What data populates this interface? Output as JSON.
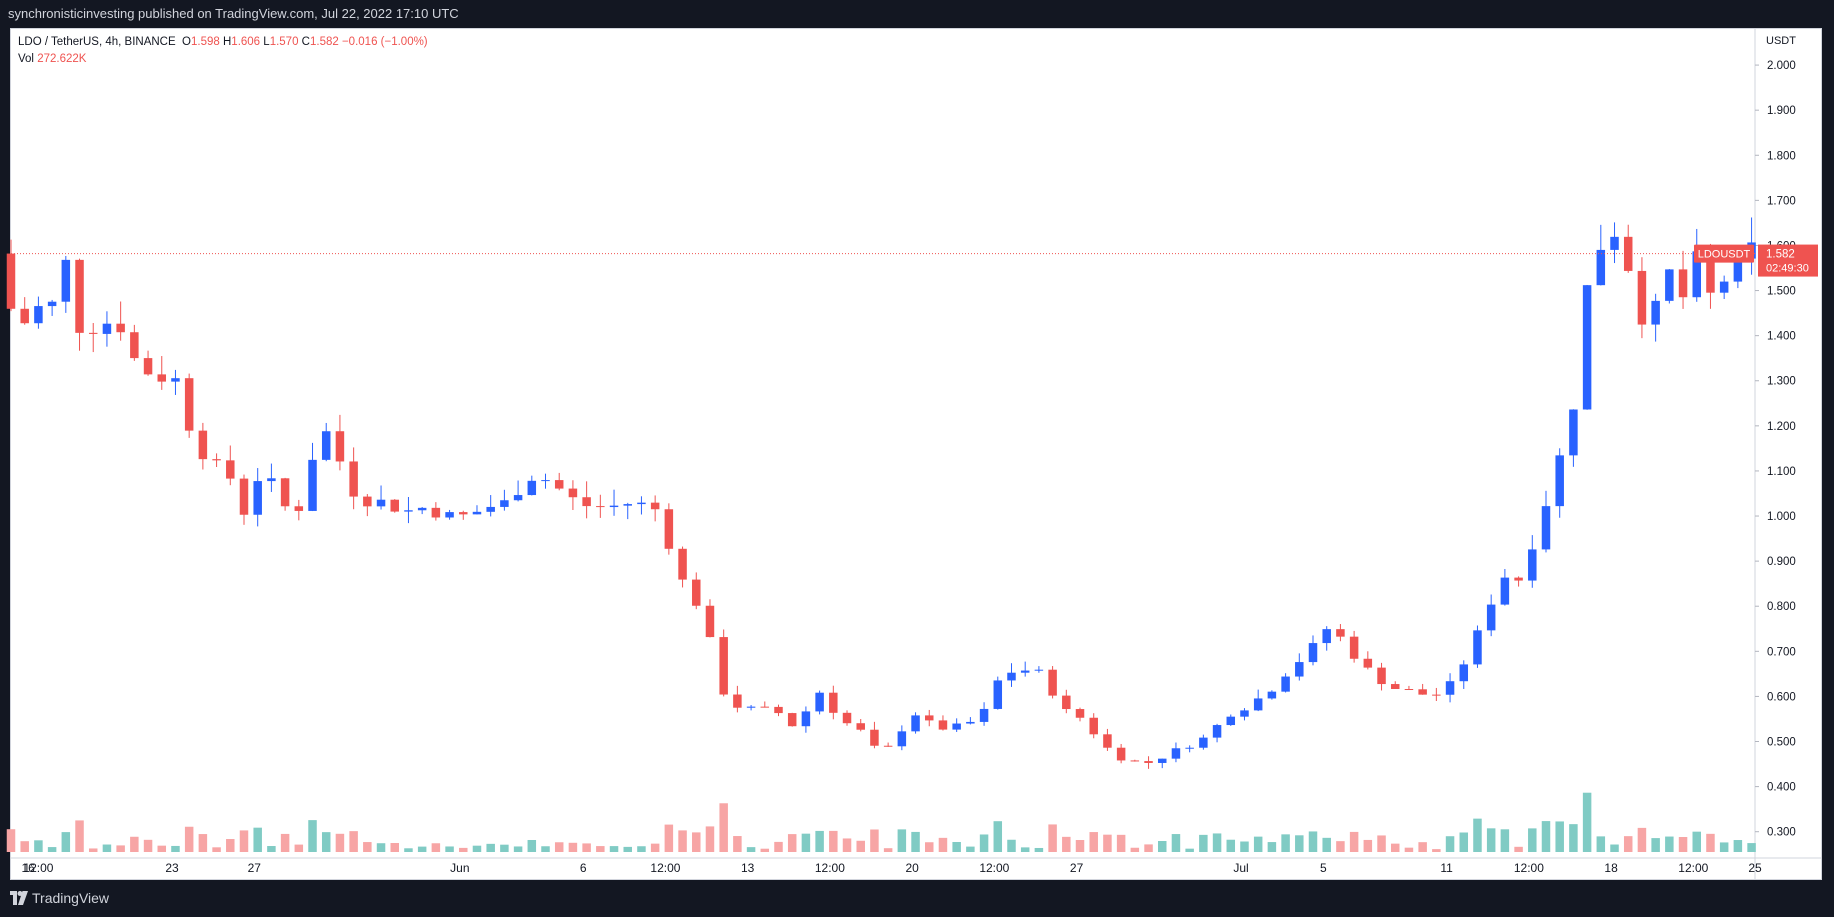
{
  "header": {
    "publish_text": "synchronisticinvesting published on TradingView.com, Jul 22, 2022 17:10 UTC"
  },
  "legend": {
    "symbol": "LDO / TetherUS, 4h, BINANCE",
    "o_label": "O",
    "o_value": "1.598",
    "h_label": "H",
    "h_value": "1.606",
    "l_label": "L",
    "l_value": "1.570",
    "c_label": "C",
    "c_value": "1.582",
    "change": "−0.016 (−1.00%)",
    "vol_label": "Vol",
    "vol_value": "272.622K"
  },
  "price_tag": {
    "symbol": "LDOUSDT",
    "price": "1.582",
    "countdown": "02:49:30"
  },
  "footer": {
    "brand": "TradingView"
  },
  "colors": {
    "up": "#2962ff",
    "down": "#ef5350",
    "vol_up": "#80cbc4",
    "vol_down": "#f7a5a5",
    "price_line": "#ef5350"
  },
  "chart_data": {
    "type": "candlestick",
    "title": "LDO / TetherUS, 4h, BINANCE",
    "y_axis_unit": "USDT",
    "y_ticks": [
      "2.000",
      "1.900",
      "1.800",
      "1.700",
      "1.600",
      "1.500",
      "1.400",
      "1.300",
      "1.200",
      "1.100",
      "1.000",
      "0.900",
      "0.800",
      "0.700",
      "0.600",
      "0.500",
      "0.400",
      "0.300"
    ],
    "ylim": [
      0.255,
      2.08
    ],
    "x_ticks": [
      "16",
      "12:00",
      "23",
      "27",
      "Jun",
      "6",
      "12:00",
      "13",
      "12:00",
      "20",
      "12:00",
      "27",
      "Jul",
      "5",
      "11",
      "12:00",
      "18",
      "12:00",
      "25"
    ],
    "x_tick_times": [
      0,
      3,
      42,
      66,
      126,
      162,
      186,
      210,
      234,
      258,
      282,
      306,
      354,
      378,
      414,
      438,
      462,
      486,
      504
    ],
    "x_time_unit": "hours since May 16 00:00 UTC",
    "xlim": [
      -5,
      504
    ],
    "bar_hours": 4,
    "last_price": 1.582,
    "waypoints": [
      [
        -4,
        1.5
      ],
      [
        2,
        1.42
      ],
      [
        6,
        1.46
      ],
      [
        12,
        1.47
      ],
      [
        15,
        1.56
      ],
      [
        18,
        1.42
      ],
      [
        24,
        1.42
      ],
      [
        30,
        1.44
      ],
      [
        36,
        1.33
      ],
      [
        42,
        1.31
      ],
      [
        48,
        1.3
      ],
      [
        50,
        1.22
      ],
      [
        54,
        1.15
      ],
      [
        60,
        1.1
      ],
      [
        64,
        1.08
      ],
      [
        66,
        1.0
      ],
      [
        70,
        1.04
      ],
      [
        72,
        1.13
      ],
      [
        76,
        1.05
      ],
      [
        78,
        1.02
      ],
      [
        84,
        1.02
      ],
      [
        88,
        1.17
      ],
      [
        92,
        1.19
      ],
      [
        96,
        1.1
      ],
      [
        100,
        1.04
      ],
      [
        108,
        1.03
      ],
      [
        114,
        1.01
      ],
      [
        120,
        1.02
      ],
      [
        126,
        1.0
      ],
      [
        132,
        1.0
      ],
      [
        138,
        1.02
      ],
      [
        144,
        1.03
      ],
      [
        150,
        1.09
      ],
      [
        156,
        1.08
      ],
      [
        162,
        1.04
      ],
      [
        168,
        1.02
      ],
      [
        174,
        1.02
      ],
      [
        180,
        1.03
      ],
      [
        186,
        1.02
      ],
      [
        190,
        1.0
      ],
      [
        192,
        0.88
      ],
      [
        198,
        0.83
      ],
      [
        204,
        0.7
      ],
      [
        206,
        0.62
      ],
      [
        210,
        0.58
      ],
      [
        216,
        0.57
      ],
      [
        222,
        0.57
      ],
      [
        228,
        0.53
      ],
      [
        232,
        0.58
      ],
      [
        234,
        0.62
      ],
      [
        240,
        0.56
      ],
      [
        246,
        0.52
      ],
      [
        250,
        0.53
      ],
      [
        252,
        0.44
      ],
      [
        256,
        0.5
      ],
      [
        258,
        0.52
      ],
      [
        264,
        0.57
      ],
      [
        268,
        0.53
      ],
      [
        274,
        0.53
      ],
      [
        282,
        0.55
      ],
      [
        288,
        0.65
      ],
      [
        294,
        0.66
      ],
      [
        300,
        0.65
      ],
      [
        306,
        0.57
      ],
      [
        312,
        0.55
      ],
      [
        318,
        0.49
      ],
      [
        324,
        0.46
      ],
      [
        330,
        0.45
      ],
      [
        336,
        0.47
      ],
      [
        342,
        0.49
      ],
      [
        348,
        0.51
      ],
      [
        354,
        0.56
      ],
      [
        360,
        0.58
      ],
      [
        366,
        0.61
      ],
      [
        372,
        0.66
      ],
      [
        378,
        0.7
      ],
      [
        384,
        0.76
      ],
      [
        390,
        0.7
      ],
      [
        396,
        0.65
      ],
      [
        402,
        0.62
      ],
      [
        408,
        0.61
      ],
      [
        414,
        0.6
      ],
      [
        420,
        0.63
      ],
      [
        426,
        0.72
      ],
      [
        432,
        0.83
      ],
      [
        436,
        0.88
      ],
      [
        438,
        0.84
      ],
      [
        444,
        0.96
      ],
      [
        450,
        1.1
      ],
      [
        456,
        1.28
      ],
      [
        460,
        1.58
      ],
      [
        462,
        1.65
      ],
      [
        464,
        1.55
      ],
      [
        468,
        1.66
      ],
      [
        472,
        1.52
      ],
      [
        476,
        1.42
      ],
      [
        480,
        1.47
      ],
      [
        484,
        1.56
      ],
      [
        488,
        1.46
      ],
      [
        492,
        1.6
      ],
      [
        496,
        1.45
      ],
      [
        500,
        1.55
      ],
      [
        504,
        1.55
      ],
      [
        506,
        1.6
      ],
      [
        508,
        1.582
      ]
    ],
    "volume_max": 1000000
  }
}
